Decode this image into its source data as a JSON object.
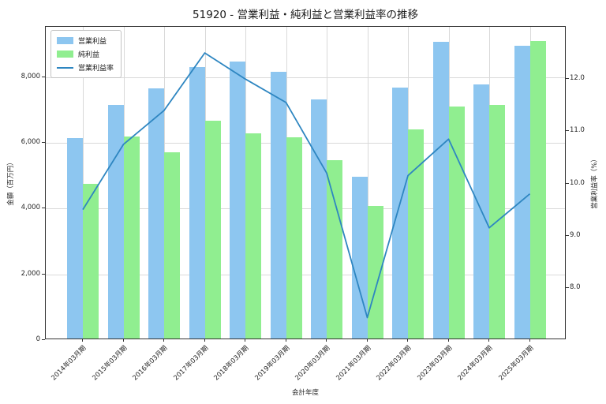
{
  "chart_data": {
    "type": "bar+line",
    "title": "51920 - 営業利益・純利益と営業利益率の推移",
    "xlabel": "会計年度",
    "ylabel_left": "金額（百万円）",
    "ylabel_right": "営業利益率（%）",
    "categories": [
      "2014年03月期",
      "2015年03月期",
      "2016年03月期",
      "2017年03月期",
      "2018年03月期",
      "2019年03月期",
      "2020年03月期",
      "2021年03月期",
      "2022年03月期",
      "2023年03月期",
      "2024年03月期",
      "2025年03月期"
    ],
    "series": [
      {
        "name": "営業利益",
        "type": "bar",
        "axis": "left",
        "color": "#8DC6F0",
        "values": [
          6100,
          7100,
          7620,
          8270,
          8420,
          8120,
          7280,
          4930,
          7630,
          9030,
          7730,
          8910
        ]
      },
      {
        "name": "純利益",
        "type": "bar",
        "axis": "left",
        "color": "#90EE90",
        "values": [
          4710,
          6140,
          5660,
          6630,
          6240,
          6130,
          5430,
          4030,
          6360,
          7060,
          7100,
          9050
        ]
      },
      {
        "name": "営業利益率",
        "type": "line",
        "axis": "right",
        "color": "#2E86C1",
        "values": [
          9.5,
          10.75,
          11.4,
          12.5,
          12.0,
          11.55,
          10.2,
          7.43,
          10.15,
          10.85,
          9.15,
          9.8
        ]
      }
    ],
    "ylim_left": [
      0,
      9530
    ],
    "ylim_right": [
      7.0,
      13.0
    ],
    "yticks_left": {
      "values": [
        0,
        2000,
        4000,
        6000,
        8000
      ],
      "labels": [
        "0",
        "2,000",
        "4,000",
        "6,000",
        "8,000"
      ]
    },
    "yticks_right": {
      "values": [
        8,
        9,
        10,
        11,
        12
      ],
      "labels": [
        "8.0",
        "9.0",
        "10.0",
        "11.0",
        "12.0"
      ]
    },
    "grid": true,
    "legend_position": "upper-left",
    "colors": {
      "bar_operating_profit": "#8DC6F0",
      "bar_net_profit": "#90EE90",
      "line_profit_rate": "#2E86C1",
      "gridline": "#d9d9d9",
      "spine": "#333333"
    }
  }
}
